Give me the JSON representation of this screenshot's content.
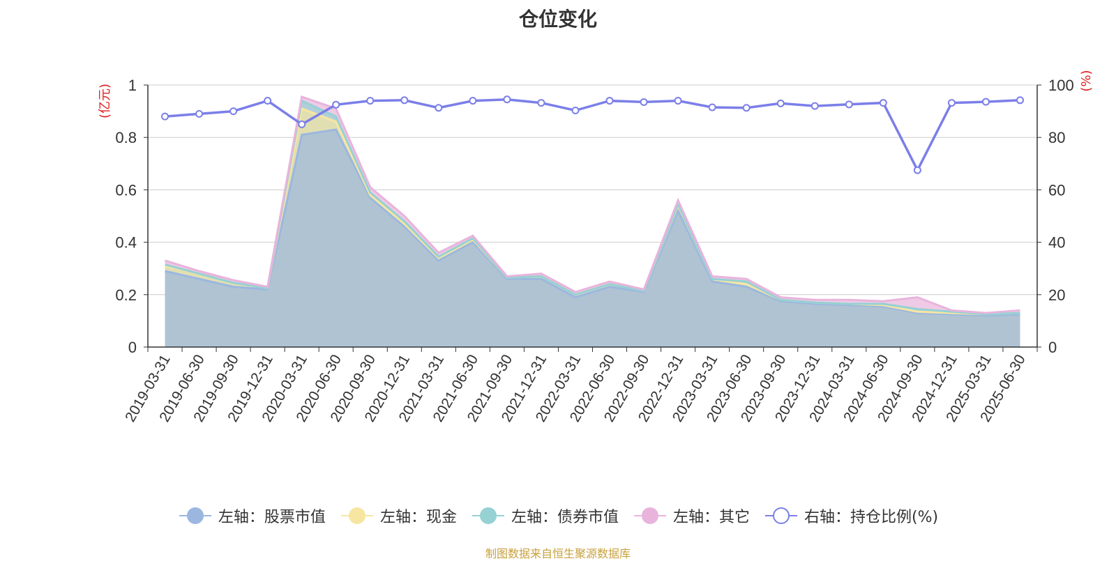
{
  "title": "仓位变化",
  "source": "制图数据来自恒生聚源数据库",
  "chart_data": {
    "type": "area",
    "x": [
      "2019-03-31",
      "2019-06-30",
      "2019-09-30",
      "2019-12-31",
      "2020-03-31",
      "2020-06-30",
      "2020-09-30",
      "2020-12-31",
      "2021-03-31",
      "2021-06-30",
      "2021-09-30",
      "2021-12-31",
      "2022-03-31",
      "2022-06-30",
      "2022-09-30",
      "2022-12-31",
      "2023-03-31",
      "2023-06-30",
      "2023-09-30",
      "2023-12-31",
      "2024-03-31",
      "2024-06-30",
      "2024-09-30",
      "2024-12-31",
      "2025-03-31",
      "2025-06-30"
    ],
    "y_left": {
      "unit_label": "(亿元)",
      "ylim": [
        0,
        1
      ],
      "ticks": [
        "0",
        "0.2",
        "0.4",
        "0.6",
        "0.8",
        "1"
      ]
    },
    "y_right": {
      "unit_label": "(%)",
      "ylim": [
        0,
        100
      ],
      "ticks": [
        "0",
        "20",
        "40",
        "60",
        "80",
        "100"
      ]
    },
    "grid": true,
    "legend_position": "bottom",
    "stacked_series": [
      {
        "name": "左轴：股票市值",
        "color": "#9bb7e0",
        "values": [
          0.29,
          0.26,
          0.23,
          0.22,
          0.81,
          0.83,
          0.57,
          0.46,
          0.33,
          0.4,
          0.26,
          0.26,
          0.19,
          0.23,
          0.21,
          0.52,
          0.25,
          0.23,
          0.175,
          0.165,
          0.16,
          0.155,
          0.13,
          0.125,
          0.12,
          0.125
        ]
      },
      {
        "name": "左轴：现金",
        "color": "#f7e6a1",
        "values": [
          0.02,
          0.02,
          0.015,
          0.005,
          0.1,
          0.03,
          0.01,
          0.01,
          0.01,
          0.01,
          0.005,
          0.01,
          0.01,
          0.01,
          0.005,
          0.02,
          0.01,
          0.01,
          0.005,
          0.005,
          0.005,
          0.005,
          0.005,
          0.005,
          0.005,
          0.005
        ]
      },
      {
        "name": "左轴：债券市值",
        "color": "#96d1d4",
        "values": [
          0.005,
          0.0,
          0.0,
          0.0,
          0.03,
          0.02,
          0.01,
          0.01,
          0.005,
          0.005,
          0.0,
          0.0,
          0.0,
          0.0,
          0.0,
          0.005,
          0.0,
          0.01,
          0.0,
          0.0,
          0.0,
          0.005,
          0.01,
          0.005,
          0.0,
          0.0
        ]
      },
      {
        "name": "左轴：其它",
        "color": "#e8b4dc",
        "values": [
          0.015,
          0.01,
          0.01,
          0.005,
          0.015,
          0.03,
          0.02,
          0.02,
          0.015,
          0.01,
          0.005,
          0.01,
          0.01,
          0.01,
          0.005,
          0.015,
          0.01,
          0.01,
          0.01,
          0.01,
          0.015,
          0.01,
          0.045,
          0.005,
          0.005,
          0.01
        ]
      }
    ],
    "line_series": {
      "name": "右轴：持仓比例(%)",
      "color": "#7b7fe8",
      "values": [
        88,
        89,
        90,
        94,
        85,
        92.5,
        94,
        94.2,
        91.3,
        94,
        94.5,
        93.2,
        90.3,
        94,
        93.5,
        94,
        91.5,
        91.3,
        93,
        92,
        92.6,
        93.2,
        67.5,
        93.2,
        93.6,
        94.2
      ]
    }
  }
}
